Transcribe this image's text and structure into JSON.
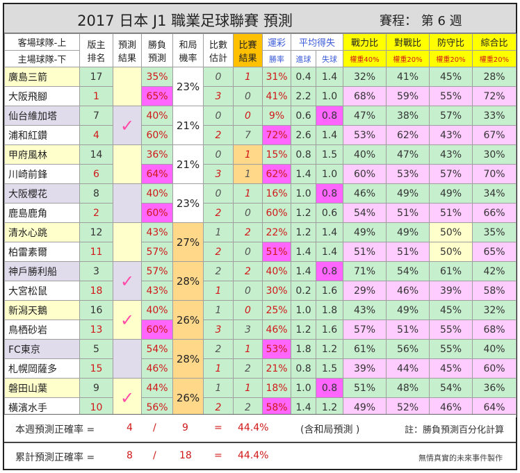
{
  "title": "2017 日本 J1 職業足球聯賽 預測",
  "schedule": "賽程： 第 6 週",
  "headers": {
    "team_top": "客場球隊-上",
    "team_bottom": "主場球隊-下",
    "rank1": "版主",
    "rank2": "排名",
    "pred1": "預測",
    "pred2": "結果",
    "winloss1": "勝負",
    "winloss2": "預測",
    "draw1": "和局",
    "draw2": "機率",
    "score1": "比數",
    "score2": "估計",
    "result1": "比賽",
    "result2": "結果",
    "lottery": "運彩",
    "lottery_sub": "勝率",
    "avg": "平均得失",
    "avg_for": "進球",
    "avg_against": "失球",
    "power": "戰力比",
    "power_w": "權重40%",
    "h2h": "對戰比",
    "h2h_w": "權重20%",
    "defense": "防守比",
    "defense_w": "權重20%",
    "overall": "綜合比",
    "overall_w": "權重20%"
  },
  "matches": [
    {
      "draw": "23%",
      "draw_hl": false,
      "check": "",
      "top": {
        "team": "廣島三箭",
        "rank": "17",
        "pct": "35%",
        "pct_hl": false,
        "score": "0",
        "result": "1",
        "lot": "31%",
        "lot_hl": false,
        "gf": "0.4",
        "ga": "1.4",
        "ga_hl": false,
        "power": "32%",
        "h2h": "41%",
        "def": "45%",
        "def_hl": false,
        "overall": "28%"
      },
      "bot": {
        "team": "大阪飛腳",
        "rank": "1",
        "pct": "65%",
        "pct_hl": true,
        "score": "3",
        "result": "0",
        "lot": "41%",
        "lot_hl": false,
        "gf": "2.2",
        "ga": "1.0",
        "ga_hl": false,
        "power": "68%",
        "h2h": "59%",
        "def": "55%",
        "def_hl": false,
        "overall": "72%"
      }
    },
    {
      "draw": "21%",
      "draw_hl": false,
      "check": "✓",
      "top": {
        "team": "仙台維加塔",
        "rank": "7",
        "pct": "40%",
        "pct_hl": false,
        "score": "0",
        "result": "0",
        "lot": "9%",
        "lot_hl": false,
        "gf": "0.6",
        "ga": "0.8",
        "ga_hl": true,
        "power": "47%",
        "h2h": "38%",
        "def": "57%",
        "def_hl": false,
        "overall": "33%"
      },
      "bot": {
        "team": "浦和紅鑽",
        "rank": "4",
        "pct": "60%",
        "pct_hl": false,
        "score": "2",
        "result": "7",
        "lot": "72%",
        "lot_hl": true,
        "gf": "2.6",
        "ga": "1.4",
        "ga_hl": false,
        "power": "53%",
        "h2h": "62%",
        "def": "43%",
        "def_hl": false,
        "overall": "67%"
      }
    },
    {
      "draw": "21%",
      "draw_hl": false,
      "check": "",
      "top": {
        "team": "甲府風林",
        "rank": "14",
        "pct": "36%",
        "pct_hl": false,
        "score": "0",
        "result": "1",
        "result_orange": true,
        "lot": "15%",
        "lot_hl": false,
        "gf": "0.8",
        "ga": "1.5",
        "ga_hl": false,
        "power": "40%",
        "h2h": "47%",
        "def": "43%",
        "def_hl": false,
        "overall": "30%"
      },
      "bot": {
        "team": "川崎前鋒",
        "rank": "6",
        "pct": "64%",
        "pct_hl": true,
        "score": "3",
        "result": "1",
        "result_orange": true,
        "lot": "62%",
        "lot_hl": true,
        "gf": "1.4",
        "ga": "1.0",
        "ga_hl": false,
        "power": "60%",
        "h2h": "53%",
        "def": "57%",
        "def_hl": false,
        "overall": "70%"
      }
    },
    {
      "draw": "23%",
      "draw_hl": false,
      "check": "",
      "top": {
        "team": "大阪櫻花",
        "rank": "8",
        "pct": "40%",
        "pct_hl": false,
        "score": "0",
        "result": "1",
        "lot": "16%",
        "lot_hl": false,
        "gf": "1.0",
        "ga": "0.8",
        "ga_hl": true,
        "power": "46%",
        "h2h": "49%",
        "def": "49%",
        "def_hl": false,
        "overall": "34%"
      },
      "bot": {
        "team": "鹿島鹿角",
        "rank": "2",
        "pct": "60%",
        "pct_hl": true,
        "score": "2",
        "result": "0",
        "lot": "60%",
        "lot_hl": false,
        "gf": "1.2",
        "ga": "0.6",
        "ga_hl": false,
        "power": "54%",
        "h2h": "51%",
        "def": "51%",
        "def_hl": false,
        "overall": "66%"
      }
    },
    {
      "draw": "27%",
      "draw_hl": true,
      "check": "",
      "top": {
        "team": "清水心跳",
        "rank": "12",
        "pct": "43%",
        "pct_hl": false,
        "score": "1",
        "result": "2",
        "lot": "22%",
        "lot_hl": false,
        "gf": "1.2",
        "ga": "1.4",
        "ga_hl": false,
        "power": "49%",
        "h2h": "49%",
        "def": "50%",
        "def_hl": true,
        "overall": "35%"
      },
      "bot": {
        "team": "柏雷素爾",
        "rank": "11",
        "pct": "57%",
        "pct_hl": false,
        "score": "2",
        "result": "0",
        "lot": "51%",
        "lot_hl": true,
        "gf": "1.4",
        "ga": "1.4",
        "ga_hl": false,
        "power": "51%",
        "h2h": "51%",
        "def": "50%",
        "def_hl": true,
        "overall": "65%"
      }
    },
    {
      "draw": "28%",
      "draw_hl": true,
      "check": "✓",
      "top": {
        "team": "神戶勝利船",
        "rank": "3",
        "pct": "57%",
        "pct_hl": false,
        "score": "2",
        "result": "2",
        "lot": "40%",
        "lot_hl": false,
        "gf": "1.4",
        "ga": "0.8",
        "ga_hl": true,
        "power": "71%",
        "h2h": "54%",
        "def": "61%",
        "def_hl": false,
        "overall": "42%"
      },
      "bot": {
        "team": "大宮松鼠",
        "rank": "18",
        "pct": "43%",
        "pct_hl": false,
        "score": "1",
        "result": "0",
        "lot": "30%",
        "lot_hl": false,
        "gf": "0.2",
        "ga": "1.6",
        "ga_hl": false,
        "power": "29%",
        "h2h": "46%",
        "def": "39%",
        "def_hl": false,
        "overall": "58%"
      }
    },
    {
      "draw": "26%",
      "draw_hl": true,
      "check": "✓",
      "top": {
        "team": "新潟天鵝",
        "rank": "16",
        "pct": "40%",
        "pct_hl": false,
        "score": "1",
        "result": "0",
        "lot": "25%",
        "lot_hl": false,
        "gf": "1.0",
        "ga": "1.8",
        "ga_hl": false,
        "power": "43%",
        "h2h": "49%",
        "def": "45%",
        "def_hl": false,
        "overall": "32%"
      },
      "bot": {
        "team": "鳥栖砂岩",
        "rank": "13",
        "pct": "60%",
        "pct_hl": true,
        "score": "3",
        "result": "3",
        "lot": "46%",
        "lot_hl": false,
        "gf": "1.2",
        "ga": "1.6",
        "ga_hl": false,
        "power": "57%",
        "h2h": "51%",
        "def": "55%",
        "def_hl": false,
        "overall": "68%"
      }
    },
    {
      "draw": "28%",
      "draw_hl": true,
      "check": "",
      "top": {
        "team": "FC東京",
        "rank": "5",
        "pct": "54%",
        "pct_hl": false,
        "score": "2",
        "result": "1",
        "lot": "53%",
        "lot_hl": true,
        "gf": "1.8",
        "ga": "1.2",
        "ga_hl": false,
        "power": "61%",
        "h2h": "56%",
        "def": "55%",
        "def_hl": false,
        "overall": "40%"
      },
      "bot": {
        "team": "札幌岡薩多",
        "rank": "15",
        "pct": "46%",
        "pct_hl": false,
        "score": "1",
        "result": "2",
        "lot": "21%",
        "lot_hl": false,
        "gf": "0.8",
        "ga": "1.5",
        "ga_hl": false,
        "power": "39%",
        "h2h": "44%",
        "def": "45%",
        "def_hl": false,
        "overall": "60%"
      }
    },
    {
      "draw": "26%",
      "draw_hl": true,
      "check": "✓",
      "top": {
        "team": "磐田山葉",
        "rank": "9",
        "pct": "44%",
        "pct_hl": false,
        "score": "1",
        "result": "1",
        "lot": "18%",
        "lot_hl": false,
        "gf": "1.0",
        "ga": "0.8",
        "ga_hl": true,
        "power": "51%",
        "h2h": "48%",
        "def": "54%",
        "def_hl": false,
        "overall": "36%"
      },
      "bot": {
        "team": "橫濱水手",
        "rank": "10",
        "pct": "56%",
        "pct_hl": false,
        "score": "2",
        "result": "2",
        "lot": "58%",
        "lot_hl": true,
        "gf": "1.4",
        "ga": "1.2",
        "ga_hl": false,
        "power": "49%",
        "h2h": "52%",
        "def": "46%",
        "def_hl": false,
        "overall": "64%"
      }
    }
  ],
  "footer": {
    "week_label": "本週預測正確率 =",
    "week_correct": "4",
    "slash": "/",
    "week_total": "9",
    "eq": "=",
    "week_rate": "44.4%",
    "draw_note": "(含和局預測 )",
    "note": "註：勝負預測百分化計算",
    "cum_label": "累計預測正確率 =",
    "cum_correct": "8",
    "cum_total": "18",
    "cum_rate": "44.4%",
    "credit": "無情真實的未來事件製作"
  }
}
